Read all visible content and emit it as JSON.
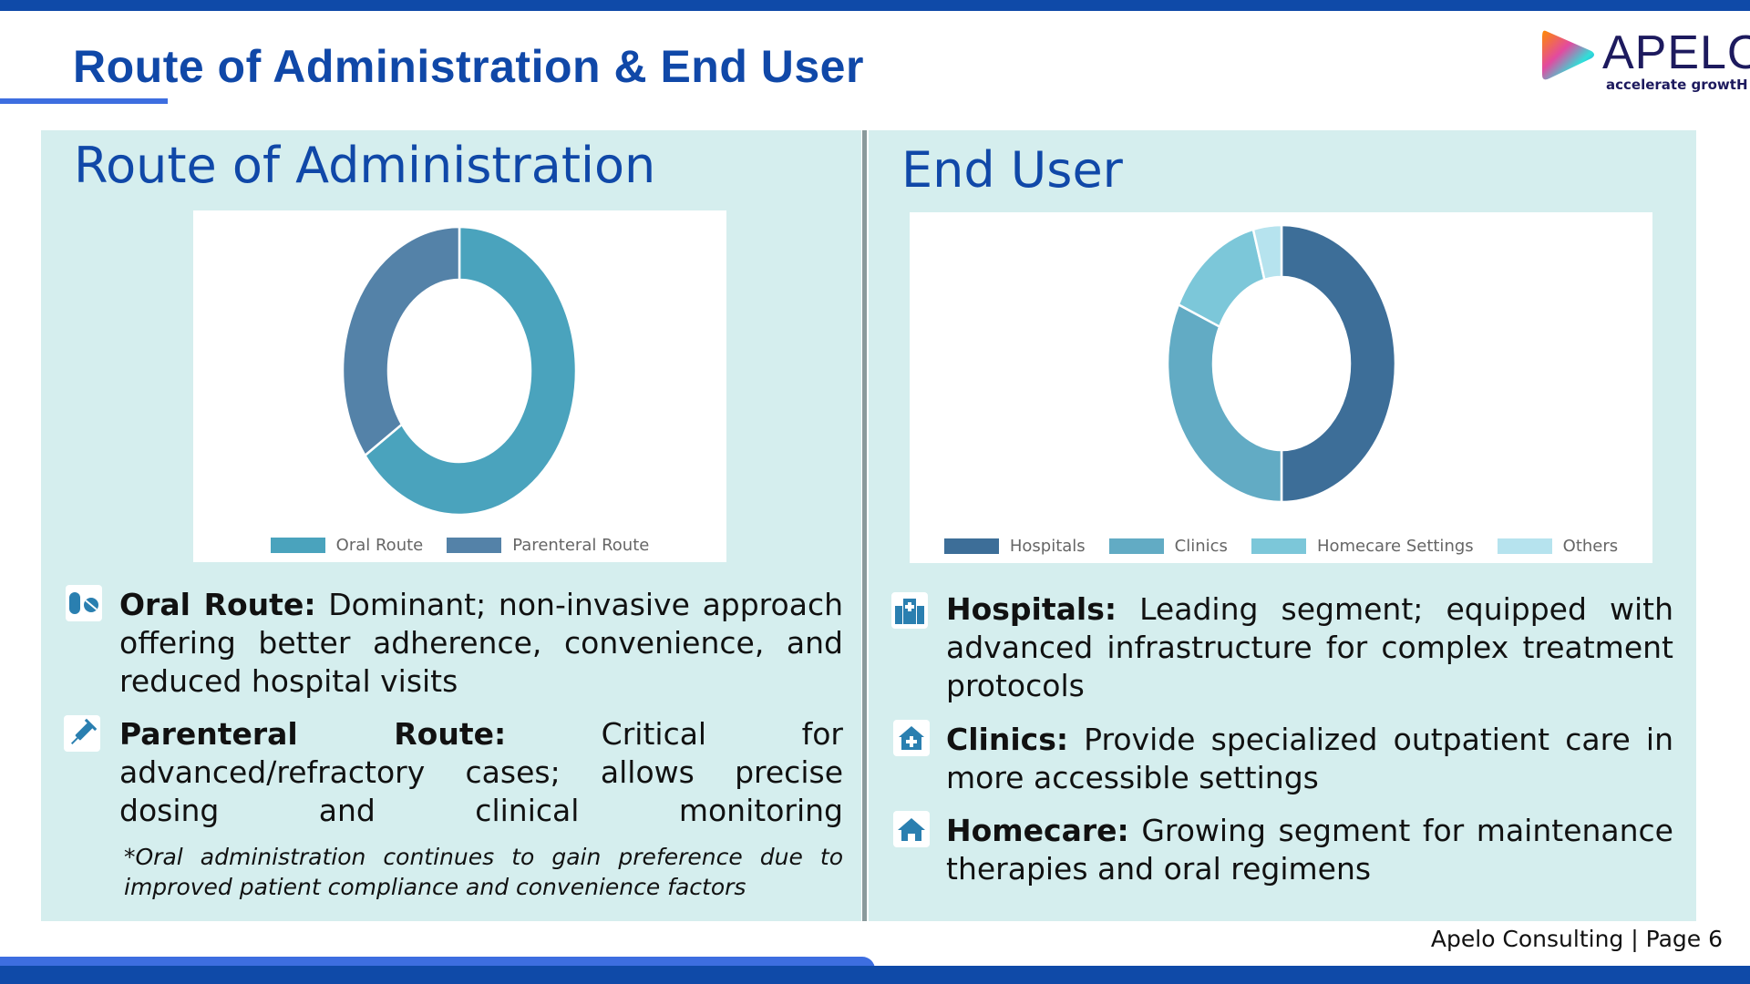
{
  "header": {
    "title": "Route of Administration & End User"
  },
  "logo": {
    "word": "APELO",
    "tagline": "accelerate growtH"
  },
  "left": {
    "heading": "Route of Administration",
    "bullets": [
      {
        "icon": "pills-icon",
        "label": "Oral Route:",
        "text": " Dominant; non-invasive approach offering better adherence, convenience, and reduced hospital visits"
      },
      {
        "icon": "syringe-icon",
        "label": "Parenteral Route:",
        "text": " Critical for advanced/refractory cases; allows precise dosing and clinical monitoring"
      }
    ],
    "note": "*Oral administration continues to gain preference due to improved patient compliance and convenience factors"
  },
  "right": {
    "heading": "End User",
    "bullets": [
      {
        "icon": "hospital-icon",
        "label": "Hospitals:",
        "text": " Leading segment; equipped with advanced infrastructure for complex treatment protocols"
      },
      {
        "icon": "clinic-icon",
        "label": "Clinics:",
        "text": " Provide specialized outpatient care in more accessible settings"
      },
      {
        "icon": "home-icon",
        "label": "Homecare:",
        "text": " Growing segment for maintenance therapies and oral regimens"
      }
    ]
  },
  "footer": {
    "text": "Apelo Consulting | Page 6"
  },
  "chart_data": [
    {
      "type": "pie",
      "donut": true,
      "legend": "bottom",
      "categories": [
        "Oral Route",
        "Parenteral Route"
      ],
      "values": [
        65,
        35
      ],
      "colors": [
        "#4aa3bd",
        "#5482a8"
      ]
    },
    {
      "type": "pie",
      "donut": true,
      "legend": "bottom",
      "categories": [
        "Hospitals",
        "Clinics",
        "Homecare Settings",
        "Others"
      ],
      "values": [
        50,
        32,
        14,
        4
      ],
      "colors": [
        "#3d6e98",
        "#62abc4",
        "#7cc7d9",
        "#b6e3ee"
      ]
    }
  ]
}
